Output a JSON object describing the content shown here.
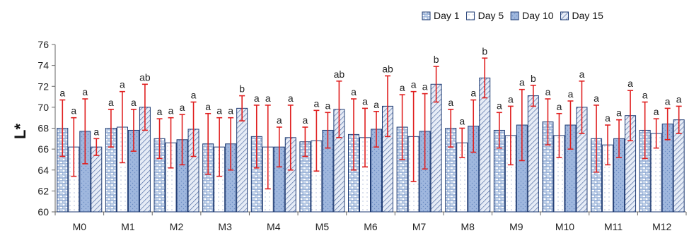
{
  "chart_data": {
    "type": "bar",
    "title": "",
    "xlabel": "",
    "ylabel": "L*",
    "ylim": [
      60,
      76
    ],
    "yticks": [
      60,
      62,
      64,
      66,
      68,
      70,
      72,
      74,
      76
    ],
    "grid": false,
    "legend_position": "top-right",
    "categories": [
      "M0",
      "M1",
      "M2",
      "M3",
      "M4",
      "M5",
      "M6",
      "M7",
      "M8",
      "M9",
      "M10",
      "M11",
      "M12"
    ],
    "series": [
      {
        "name": "Day 1",
        "values": [
          68.0,
          68.0,
          67.0,
          66.5,
          67.2,
          66.7,
          67.4,
          68.1,
          68.0,
          67.8,
          68.6,
          67.0,
          67.8
        ],
        "errors": [
          2.7,
          1.8,
          1.9,
          2.9,
          3.0,
          1.4,
          3.4,
          3.1,
          1.8,
          1.7,
          2.2,
          3.2,
          2.7
        ],
        "labels": [
          "a",
          "a",
          "a",
          "a",
          "a",
          "a",
          "a",
          "a",
          "a",
          "a",
          "a",
          "a",
          "a"
        ]
      },
      {
        "name": "Day 5",
        "values": [
          66.2,
          68.1,
          66.6,
          66.2,
          66.2,
          66.8,
          67.1,
          67.2,
          66.6,
          67.3,
          67.3,
          66.4,
          67.5
        ],
        "errors": [
          2.8,
          3.4,
          2.4,
          2.8,
          4.0,
          2.9,
          2.8,
          4.3,
          1.4,
          2.8,
          2.1,
          1.9,
          1.4
        ],
        "labels": [
          "a",
          "a",
          "a",
          "a",
          "a",
          "a",
          "a",
          "a",
          "a",
          "a",
          "a",
          "a",
          "a"
        ]
      },
      {
        "name": "Day 10",
        "values": [
          67.7,
          67.8,
          66.9,
          66.5,
          66.2,
          67.8,
          67.9,
          67.7,
          68.2,
          68.3,
          68.3,
          67.0,
          68.4
        ],
        "errors": [
          3.1,
          2.0,
          2.4,
          2.5,
          1.9,
          1.7,
          1.7,
          3.6,
          2.5,
          3.4,
          2.3,
          1.8,
          1.5
        ],
        "labels": [
          "a",
          "a",
          "a",
          "a",
          "a",
          "a",
          "a",
          "a",
          "a",
          "a",
          "a",
          "a",
          "a"
        ]
      },
      {
        "name": "Day 15",
        "values": [
          66.2,
          70.0,
          67.9,
          69.9,
          67.1,
          69.8,
          70.1,
          72.2,
          72.8,
          71.1,
          70.0,
          69.2,
          68.8
        ],
        "errors": [
          0.8,
          2.2,
          2.6,
          1.2,
          3.1,
          2.7,
          2.9,
          1.7,
          1.9,
          1.0,
          2.5,
          2.4,
          1.3
        ],
        "labels": [
          "a",
          "ab",
          "a",
          "b",
          "a",
          "ab",
          "ab",
          "b",
          "b",
          "b",
          "a",
          "a",
          "a"
        ]
      }
    ]
  },
  "colors": {
    "bar_fill": "#c6d5ea",
    "bar_pattern": "#6b8cc4",
    "bar_stroke": "#1f3b73",
    "error_bar": "#e02020",
    "axis": "#666666",
    "text": "#222222"
  }
}
